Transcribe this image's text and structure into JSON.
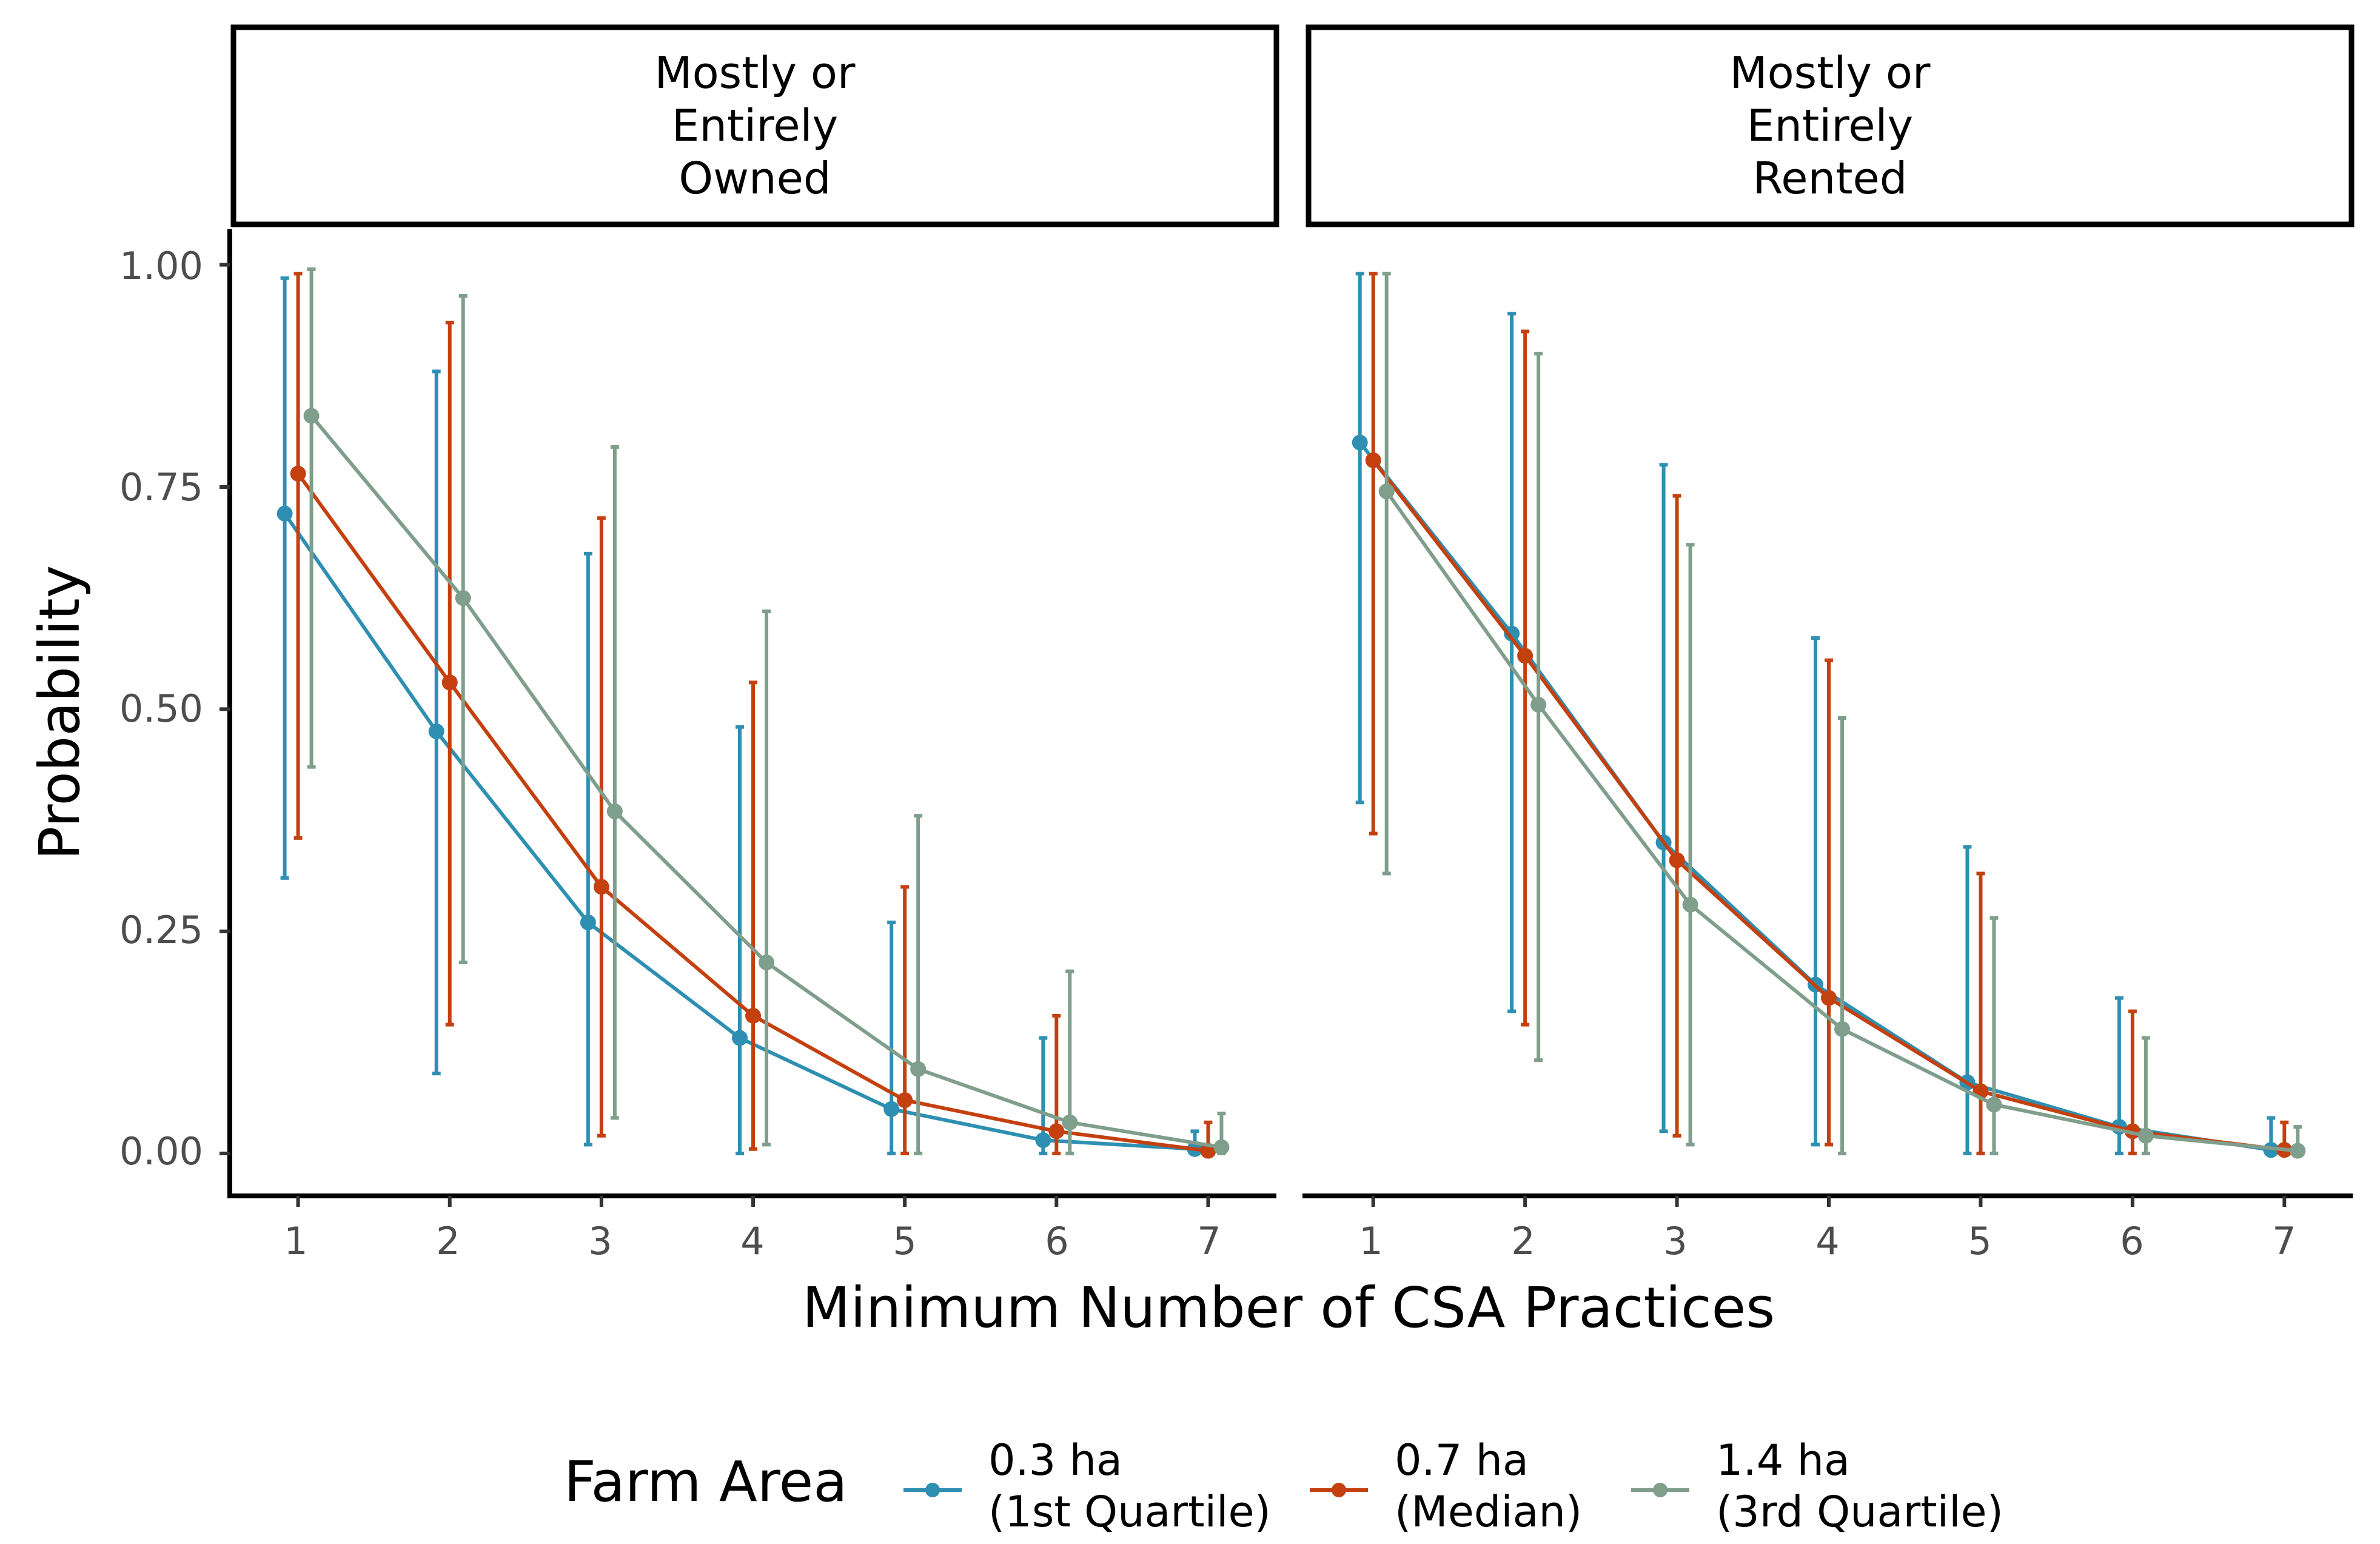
{
  "chart_data": {
    "type": "line",
    "xlabel": "Minimum Number of CSA Practices",
    "ylabel": "Probability",
    "x": [
      1,
      2,
      3,
      4,
      5,
      6,
      7
    ],
    "xlim": [
      0.55,
      7.45
    ],
    "ylim": [
      -0.045,
      1.04
    ],
    "yticks": [
      0,
      0.25,
      0.5,
      0.75,
      1.0
    ],
    "ytick_labels": [
      "0.00",
      "0.25",
      "0.50",
      "0.75",
      "1.00"
    ],
    "xtick_labels": [
      "1",
      "2",
      "3",
      "4",
      "5",
      "6",
      "7"
    ],
    "grid": false,
    "legend": {
      "title": "Farm Area",
      "position": "bottom",
      "entries": [
        {
          "line1": "0.3 ha",
          "line2": "(1st Quartile)"
        },
        {
          "line1": "0.7 ha",
          "line2": "(Median)"
        },
        {
          "line1": "1.4 ha",
          "line2": "(3rd Quartile)"
        }
      ]
    },
    "colors": [
      "#2e8fb2",
      "#c4400f",
      "#7f9e8b"
    ],
    "panels": [
      {
        "strip": [
          "Mostly or",
          "Entirely",
          "Owned"
        ],
        "series": [
          {
            "name": "0.3 ha (1st Quartile)",
            "values": [
              0.72,
              0.475,
              0.26,
              0.13,
              0.05,
              0.015,
              0.005
            ],
            "lower": [
              0.31,
              0.09,
              0.01,
              0.0,
              0.0,
              0.0,
              0.0
            ],
            "upper": [
              0.985,
              0.88,
              0.675,
              0.48,
              0.26,
              0.13,
              0.025
            ]
          },
          {
            "name": "0.7 ha (Median)",
            "values": [
              0.765,
              0.53,
              0.3,
              0.155,
              0.06,
              0.025,
              0.003
            ],
            "lower": [
              0.355,
              0.145,
              0.02,
              0.005,
              0.0,
              0.0,
              0.0
            ],
            "upper": [
              0.99,
              0.935,
              0.715,
              0.53,
              0.3,
              0.155,
              0.035
            ]
          },
          {
            "name": "1.4 ha (3rd Quartile)",
            "values": [
              0.83,
              0.625,
              0.385,
              0.215,
              0.095,
              0.035,
              0.007
            ],
            "lower": [
              0.435,
              0.215,
              0.04,
              0.01,
              0.0,
              0.0,
              0.0
            ],
            "upper": [
              0.995,
              0.965,
              0.795,
              0.61,
              0.38,
              0.205,
              0.045
            ]
          }
        ]
      },
      {
        "strip": [
          "Mostly or",
          "Entirely",
          "Rented"
        ],
        "series": [
          {
            "name": "0.3 ha (1st Quartile)",
            "values": [
              0.8,
              0.585,
              0.35,
              0.19,
              0.08,
              0.03,
              0.004
            ],
            "lower": [
              0.395,
              0.16,
              0.025,
              0.01,
              0.0,
              0.0,
              0.0
            ],
            "upper": [
              0.99,
              0.945,
              0.775,
              0.58,
              0.345,
              0.175,
              0.04
            ]
          },
          {
            "name": "0.7 ha (Median)",
            "values": [
              0.78,
              0.56,
              0.33,
              0.175,
              0.07,
              0.025,
              0.004
            ],
            "lower": [
              0.36,
              0.145,
              0.02,
              0.01,
              0.0,
              0.0,
              0.0
            ],
            "upper": [
              0.99,
              0.925,
              0.74,
              0.555,
              0.315,
              0.16,
              0.035
            ]
          },
          {
            "name": "1.4 ha (3rd Quartile)",
            "values": [
              0.745,
              0.505,
              0.28,
              0.14,
              0.055,
              0.02,
              0.003
            ],
            "lower": [
              0.315,
              0.105,
              0.01,
              0.0,
              0.0,
              0.0,
              0.0
            ],
            "upper": [
              0.99,
              0.9,
              0.685,
              0.49,
              0.265,
              0.13,
              0.03
            ]
          }
        ]
      }
    ]
  }
}
